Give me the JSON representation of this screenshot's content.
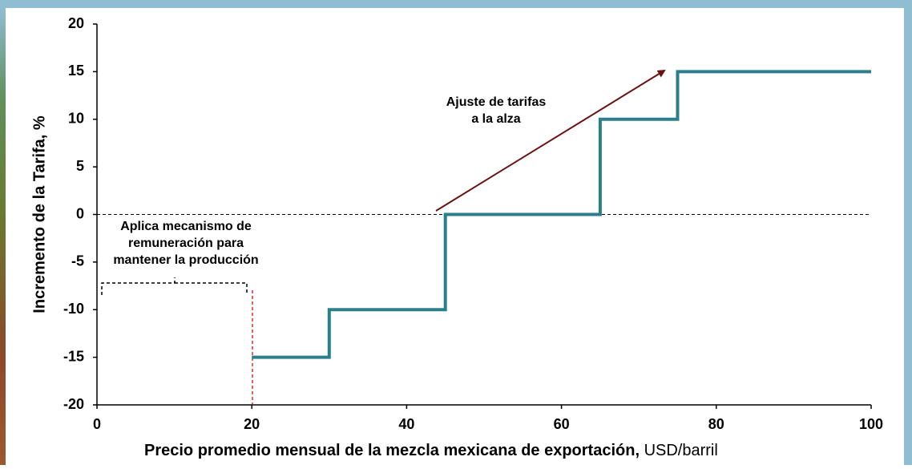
{
  "chart_data": {
    "type": "line",
    "step": true,
    "x": [
      20,
      30,
      30,
      45,
      45,
      65,
      65,
      75,
      75,
      100
    ],
    "values": [
      -15,
      -15,
      -10,
      -10,
      0,
      0,
      10,
      10,
      15,
      15
    ],
    "color": "#2b7f8b",
    "xlim": [
      0,
      100
    ],
    "xticks": [
      0,
      20,
      40,
      60,
      80,
      100
    ],
    "ylim": [
      -20,
      20
    ],
    "yticks": [
      -20,
      -15,
      -10,
      -5,
      0,
      5,
      10,
      15,
      20
    ],
    "x_label": "Precio promedio mensual de la mezcla mexicana de exportación,",
    "x_label_unit": "USD/barril",
    "y_label": "Incremento de la Tarifa, %",
    "annotations": [
      [
        "Ajuste de tarifas",
        "a la alza"
      ],
      [
        "Aplica mecanismo de",
        "remuneración para",
        "mantener la producción"
      ]
    ]
  }
}
